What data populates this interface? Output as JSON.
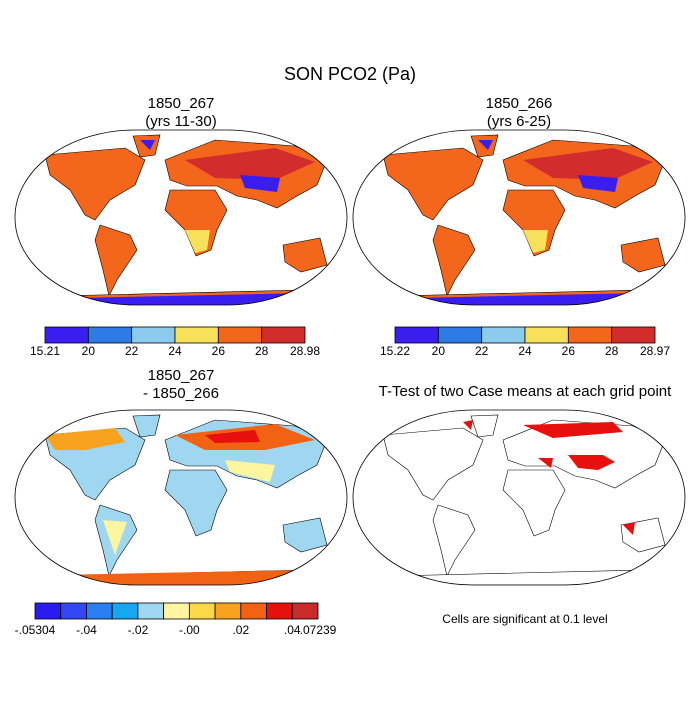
{
  "title": "SON PCO2 (Pa)",
  "panels": [
    {
      "title": [
        "1850_267",
        "(yrs 11-30)"
      ],
      "colorbar": {
        "colors": [
          "#3a1ef0",
          "#2f7be6",
          "#8ccbed",
          "#f7e15a",
          "#f4661b",
          "#d22c2c"
        ],
        "labels": [
          "15.21",
          "20",
          "22",
          "24",
          "26",
          "28",
          "28.98"
        ]
      }
    },
    {
      "title": [
        "1850_266",
        "(yrs 6-25)"
      ],
      "colorbar": {
        "colors": [
          "#3a1ef0",
          "#2f7be6",
          "#8ccbed",
          "#f7e15a",
          "#f4661b",
          "#d22c2c"
        ],
        "labels": [
          "15.22",
          "20",
          "22",
          "24",
          "26",
          "28",
          "28.97"
        ]
      }
    },
    {
      "title": [
        "1850_267",
        "- 1850_266"
      ],
      "colorbar": {
        "colors": [
          "#2a1cf0",
          "#3246f5",
          "#2a7ef0",
          "#17a6f0",
          "#9fd6f0",
          "#fdf5a0",
          "#fbd848",
          "#f7a31f",
          "#f16312",
          "#e8100c",
          "#c92a2a"
        ],
        "labels": [
          "-.05304",
          "-.04",
          "-.02",
          "-.00",
          ".02",
          ".04",
          ".07239"
        ]
      }
    },
    {
      "title": [
        "T-Test of two Case means at each grid point"
      ],
      "note": "Cells are significant at 0.1 level"
    }
  ]
}
